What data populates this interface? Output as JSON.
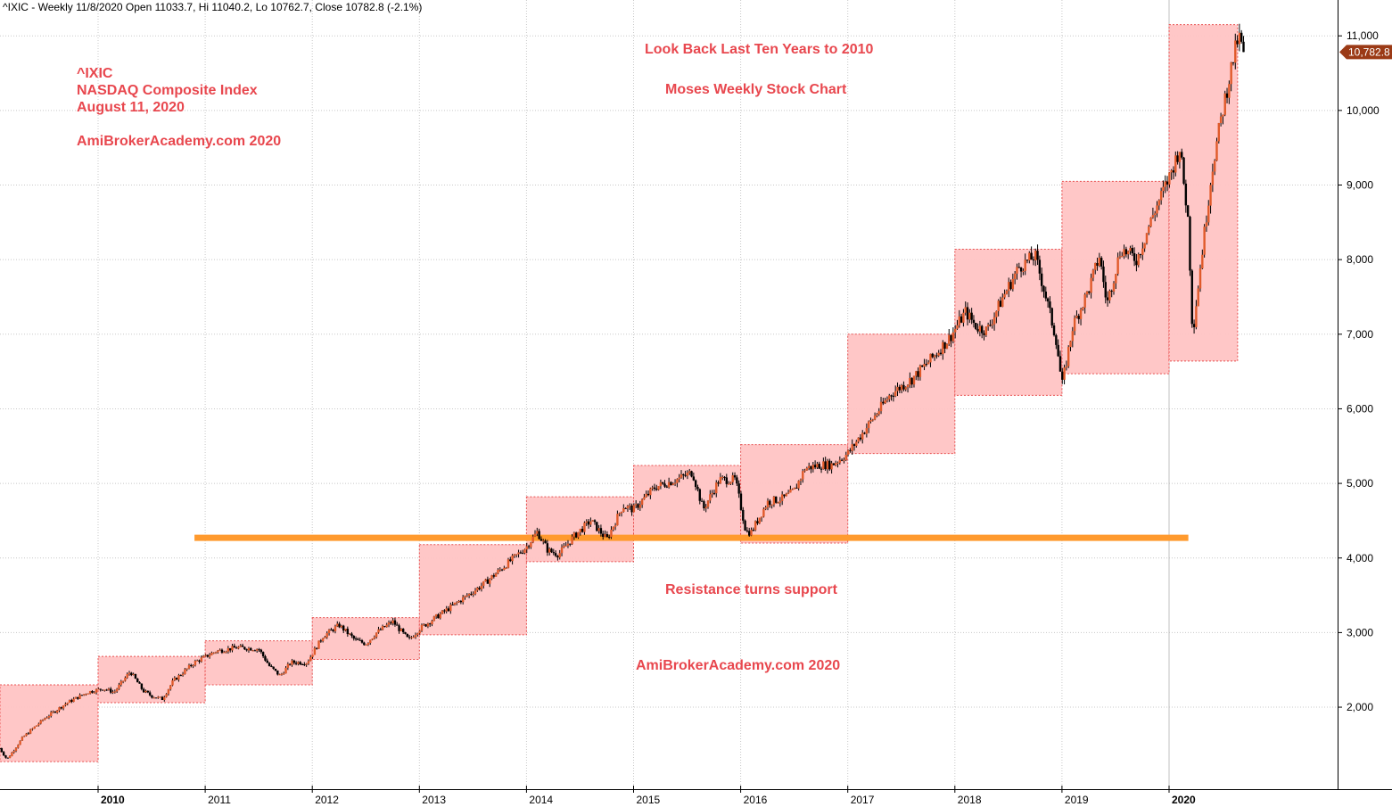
{
  "header": {
    "text": "^IXIC - Weekly 11/8/2020 Open 11033.7, Hi 11040.2, Lo 10762.7, Close 10782.8 (-2.1%)"
  },
  "annotations": {
    "ticker": "^IXIC",
    "index_name": "NASDAQ Composite Index",
    "date": "August 11, 2020",
    "site_top": "AmiBrokerAcademy.com  2020",
    "lookback": "Look Back Last Ten Years to 2010",
    "chart_name": "Moses Weekly Stock Chart",
    "resistance": "Resistance turns support",
    "site_bottom": "AmiBrokerAcademy.com  2020"
  },
  "colors": {
    "box_fill": "#ffc4c4",
    "box_border": "#e85050",
    "support_line": "#ff9a2e",
    "up_candle": "#e05a2a",
    "down_candle": "#000000",
    "last_price_bg": "#9b3a16",
    "annotation_text": "#e8474e"
  },
  "chart_data": {
    "type": "candlestick",
    "title": "",
    "interval": "Weekly",
    "ylim": [
      1050,
      11900
    ],
    "y_ticks": [
      "2,000",
      "3,000",
      "4,000",
      "5,000",
      "6,000",
      "7,000",
      "8,000",
      "9,000",
      "10,000",
      "11,000"
    ],
    "y_tick_values": [
      2000,
      3000,
      4000,
      5000,
      6000,
      7000,
      8000,
      9000,
      10000,
      11000
    ],
    "x_year_labels": [
      "2010",
      "2011",
      "2012",
      "2013",
      "2014",
      "2015",
      "2016",
      "2017",
      "2018",
      "2019",
      "2020"
    ],
    "x_start_year": 2009.08,
    "x_end_year": 2021.5,
    "last_price_label": "10,782.8",
    "last_price": 10782.8,
    "support_level": 4270,
    "support_range": [
      2010.9,
      2020.18
    ],
    "yearly_ranges": [
      {
        "year": 2009,
        "low": 1270,
        "high": 2300
      },
      {
        "year": 2010,
        "low": 2060,
        "high": 2680
      },
      {
        "year": 2011,
        "low": 2300,
        "high": 2890
      },
      {
        "year": 2012,
        "low": 2640,
        "high": 3200
      },
      {
        "year": 2013,
        "low": 2970,
        "high": 4180
      },
      {
        "year": 2014,
        "low": 3950,
        "high": 4820
      },
      {
        "year": 2015,
        "low": 4300,
        "high": 5240
      },
      {
        "year": 2016,
        "low": 4200,
        "high": 5520
      },
      {
        "year": 2017,
        "low": 5400,
        "high": 7000
      },
      {
        "year": 2018,
        "low": 6180,
        "high": 8140
      },
      {
        "year": 2019,
        "low": 6470,
        "high": 9050
      },
      {
        "year": 2020,
        "low": 6640,
        "high": 11150
      }
    ],
    "price_path": [
      [
        2009.08,
        1450
      ],
      [
        2009.15,
        1300
      ],
      [
        2009.3,
        1600
      ],
      [
        2009.5,
        1850
      ],
      [
        2009.7,
        2050
      ],
      [
        2009.9,
        2200
      ],
      [
        2010.05,
        2250
      ],
      [
        2010.15,
        2200
      ],
      [
        2010.3,
        2480
      ],
      [
        2010.42,
        2220
      ],
      [
        2010.5,
        2150
      ],
      [
        2010.6,
        2110
      ],
      [
        2010.7,
        2350
      ],
      [
        2010.9,
        2600
      ],
      [
        2011.1,
        2750
      ],
      [
        2011.3,
        2800
      ],
      [
        2011.5,
        2780
      ],
      [
        2011.6,
        2550
      ],
      [
        2011.7,
        2420
      ],
      [
        2011.8,
        2600
      ],
      [
        2011.95,
        2600
      ],
      [
        2012.1,
        2950
      ],
      [
        2012.25,
        3100
      ],
      [
        2012.4,
        2900
      ],
      [
        2012.5,
        2850
      ],
      [
        2012.6,
        3000
      ],
      [
        2012.75,
        3150
      ],
      [
        2012.9,
        2900
      ],
      [
        2013.0,
        3050
      ],
      [
        2013.2,
        3250
      ],
      [
        2013.4,
        3450
      ],
      [
        2013.6,
        3650
      ],
      [
        2013.8,
        3900
      ],
      [
        2014.0,
        4150
      ],
      [
        2014.1,
        4350
      ],
      [
        2014.2,
        4100
      ],
      [
        2014.3,
        4050
      ],
      [
        2014.45,
        4300
      ],
      [
        2014.6,
        4500
      ],
      [
        2014.75,
        4250
      ],
      [
        2014.9,
        4700
      ],
      [
        2015.0,
        4650
      ],
      [
        2015.2,
        4950
      ],
      [
        2015.4,
        5050
      ],
      [
        2015.55,
        5150
      ],
      [
        2015.65,
        4650
      ],
      [
        2015.8,
        5050
      ],
      [
        2015.95,
        5050
      ],
      [
        2016.05,
        4350
      ],
      [
        2016.1,
        4350
      ],
      [
        2016.25,
        4750
      ],
      [
        2016.4,
        4800
      ],
      [
        2016.5,
        4900
      ],
      [
        2016.6,
        5200
      ],
      [
        2016.75,
        5250
      ],
      [
        2016.85,
        5250
      ],
      [
        2017.0,
        5400
      ],
      [
        2017.2,
        5800
      ],
      [
        2017.4,
        6200
      ],
      [
        2017.6,
        6400
      ],
      [
        2017.8,
        6700
      ],
      [
        2017.95,
        6950
      ],
      [
        2018.1,
        7300
      ],
      [
        2018.2,
        7100
      ],
      [
        2018.3,
        7050
      ],
      [
        2018.45,
        7500
      ],
      [
        2018.6,
        7900
      ],
      [
        2018.75,
        8050
      ],
      [
        2018.85,
        7500
      ],
      [
        2018.95,
        6900
      ],
      [
        2019.0,
        6300
      ],
      [
        2019.1,
        7100
      ],
      [
        2019.25,
        7600
      ],
      [
        2019.35,
        8050
      ],
      [
        2019.42,
        7400
      ],
      [
        2019.55,
        8150
      ],
      [
        2019.7,
        8000
      ],
      [
        2019.85,
        8600
      ],
      [
        2020.0,
        9100
      ],
      [
        2020.1,
        9500
      ],
      [
        2020.18,
        8500
      ],
      [
        2020.22,
        7000
      ],
      [
        2020.3,
        8000
      ],
      [
        2020.4,
        9200
      ],
      [
        2020.5,
        10000
      ],
      [
        2020.6,
        10700
      ],
      [
        2020.65,
        11000
      ],
      [
        2020.69,
        10782.8
      ]
    ]
  }
}
